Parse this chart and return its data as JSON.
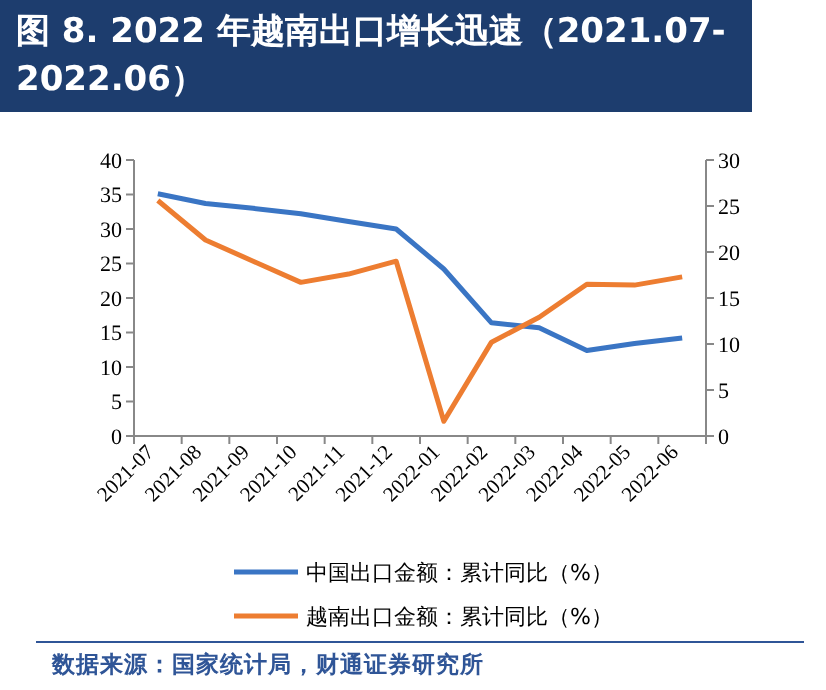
{
  "chart_data": {
    "type": "line",
    "title": "图 8. 2022 年越南出口增长迅速（2021.07-2022.06）",
    "categories": [
      "2021-07",
      "2021-08",
      "2021-09",
      "2021-10",
      "2021-11",
      "2021-12",
      "2022-01",
      "2022-02",
      "2022-03",
      "2022-04",
      "2022-05",
      "2022-06"
    ],
    "series": [
      {
        "name": "中国出口金额：累计同比（%）",
        "color": "#3a75c4",
        "values": [
          35.1,
          33.7,
          33.0,
          32.2,
          31.1,
          30.0,
          24.2,
          16.4,
          15.7,
          12.4,
          13.4,
          14.2
        ]
      },
      {
        "name": "越南出口金额：累计同比（%）",
        "color": "#ed7d31",
        "axis": "y2",
        "values": [
          25.6,
          21.3,
          19.0,
          16.7,
          17.6,
          19.0,
          1.6,
          10.2,
          12.9,
          16.5,
          16.4,
          17.3
        ]
      }
    ],
    "ylim": [
      0,
      40
    ],
    "yticks": [
      0,
      5,
      10,
      15,
      20,
      25,
      30,
      35,
      40
    ],
    "y2lim": [
      0,
      30
    ],
    "y2ticks": [
      0,
      5,
      10,
      15,
      20,
      25,
      30
    ],
    "legend": "bottom",
    "grid": false,
    "marker": "none",
    "line_style": "solid",
    "annotations": [
      "数据来源：国家统计局，财通证券研究所"
    ]
  }
}
